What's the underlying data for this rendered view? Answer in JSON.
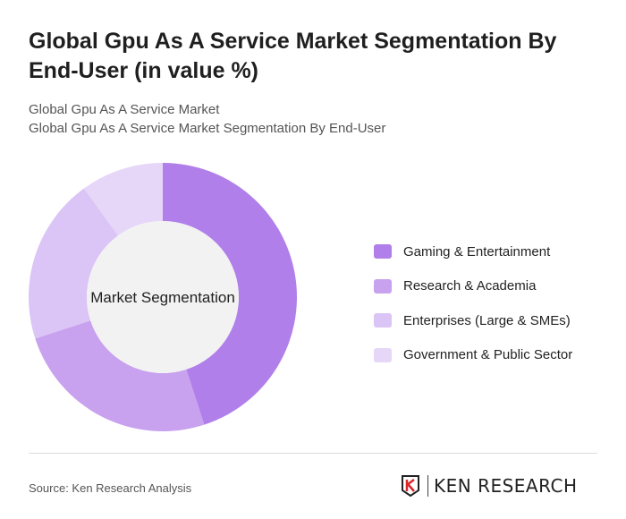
{
  "title": "Global Gpu As A Service Market Segmentation By End-User (in value %)",
  "subtitle_1": "Global Gpu As A Service Market",
  "subtitle_2": "Global Gpu As A Service Market Segmentation By End-User",
  "chart_data": {
    "type": "pie",
    "variant": "donut",
    "center_label": "Market Segmentation",
    "categories": [
      "Gaming & Entertainment",
      "Research & Academia",
      "Enterprises (Large & SMEs)",
      "Government & Public Sector"
    ],
    "values": [
      45,
      25,
      20,
      10
    ],
    "colors": [
      "#b07fe9",
      "#c8a1ef",
      "#dbc4f6",
      "#e6d6f8"
    ],
    "legend_position": "right"
  },
  "footer": {
    "source": "Source: Ken Research Analysis",
    "logo_text": "KEN RESEARCH"
  }
}
